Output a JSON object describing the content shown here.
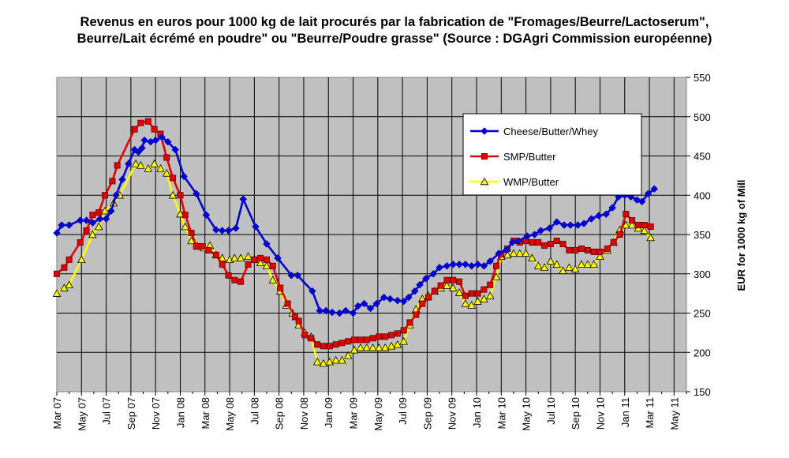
{
  "chart_data": {
    "type": "line",
    "title": "Revenus en euros pour 1000 kg de lait procurés par la fabrication de \"Fromages/Beurre/Lactoserum\",",
    "subtitle": "Beurre/Lait écrémé en poudre\" ou \"Beurre/Poudre grasse\" (Source : DGAgri Commission européenne)",
    "xlabel": "",
    "ylabel": "EUR for 1000 kg of Mill",
    "ylim": [
      150,
      550
    ],
    "yticks": [
      150,
      200,
      250,
      300,
      350,
      400,
      450,
      500,
      550
    ],
    "xlim": [
      0,
      51
    ],
    "x_tick_labels": [
      "Mar 07",
      "May 07",
      "Jul 07",
      "Sep 07",
      "Nov 07",
      "Jan 08",
      "Mar 08",
      "May 08",
      "Jul 08",
      "Sep 08",
      "Nov 08",
      "Jan 09",
      "Mar 09",
      "May 09",
      "Jul 09",
      "Sep 09",
      "Nov 09",
      "Jan 10",
      "Mar 10",
      "May 10",
      "Jul 10",
      "Sep 10",
      "Nov 10",
      "Jan 11",
      "Mar 11",
      "May 11"
    ],
    "grid": true,
    "legend_position": "top-right",
    "background": "#c0c0c0",
    "series": [
      {
        "name": "Cheese/Butter/Whey",
        "color": "#0000cc",
        "marker": "diamond",
        "points": [
          [
            0,
            352
          ],
          [
            0.4,
            362
          ],
          [
            1,
            362
          ],
          [
            1.9,
            368
          ],
          [
            2.4,
            368
          ],
          [
            2.9,
            365
          ],
          [
            3.5,
            370
          ],
          [
            4,
            370
          ],
          [
            4.4,
            380
          ],
          [
            4.8,
            400
          ],
          [
            5.3,
            420
          ],
          [
            5.8,
            440
          ],
          [
            6.3,
            458
          ],
          [
            6.6,
            455
          ],
          [
            6.9,
            460
          ],
          [
            7.1,
            470
          ],
          [
            7.6,
            468
          ],
          [
            8,
            470
          ],
          [
            8.5,
            474
          ],
          [
            9,
            468
          ],
          [
            9.6,
            458
          ],
          [
            10.3,
            424
          ],
          [
            11.3,
            402
          ],
          [
            12.1,
            375
          ],
          [
            12.9,
            356
          ],
          [
            13.4,
            355
          ],
          [
            13.9,
            355
          ],
          [
            14.5,
            358
          ],
          [
            15.1,
            395
          ],
          [
            16.1,
            360
          ],
          [
            17,
            338
          ],
          [
            17.9,
            320
          ],
          [
            19,
            298
          ],
          [
            19.5,
            298
          ],
          [
            20.7,
            278
          ],
          [
            21.3,
            253
          ],
          [
            21.8,
            253
          ],
          [
            22.3,
            251
          ],
          [
            22.9,
            250
          ],
          [
            23.4,
            253
          ],
          [
            24,
            250
          ],
          [
            24.4,
            259
          ],
          [
            24.9,
            262
          ],
          [
            25.4,
            256
          ],
          [
            25.9,
            262
          ],
          [
            26.5,
            270
          ],
          [
            27,
            268
          ],
          [
            27.6,
            266
          ],
          [
            28.1,
            265
          ],
          [
            28.5,
            270
          ],
          [
            29,
            278
          ],
          [
            29.4,
            286
          ],
          [
            29.9,
            294
          ],
          [
            30.5,
            300
          ],
          [
            31,
            308
          ],
          [
            31.6,
            310
          ],
          [
            32.1,
            312
          ],
          [
            32.6,
            312
          ],
          [
            33.1,
            312
          ],
          [
            33.6,
            310
          ],
          [
            34.1,
            312
          ],
          [
            34.6,
            310
          ],
          [
            35.1,
            316
          ],
          [
            35.8,
            326
          ],
          [
            36.4,
            330
          ],
          [
            36.9,
            340
          ],
          [
            37.4,
            342
          ],
          [
            38.1,
            348
          ],
          [
            38.7,
            350
          ],
          [
            39.2,
            355
          ],
          [
            39.9,
            358
          ],
          [
            40.5,
            366
          ],
          [
            41.1,
            362
          ],
          [
            41.6,
            362
          ],
          [
            42.2,
            362
          ],
          [
            42.7,
            364
          ],
          [
            43.3,
            370
          ],
          [
            43.9,
            374
          ],
          [
            44.5,
            376
          ],
          [
            45,
            384
          ],
          [
            45.5,
            398
          ],
          [
            46,
            400
          ],
          [
            46.5,
            398
          ],
          [
            47,
            394
          ],
          [
            47.4,
            392
          ],
          [
            47.9,
            402
          ],
          [
            48.4,
            408
          ]
        ]
      },
      {
        "name": "SMP/Butter",
        "color": "#e00000",
        "marker": "square",
        "points": [
          [
            0,
            300
          ],
          [
            0.6,
            308
          ],
          [
            1,
            318
          ],
          [
            1.9,
            340
          ],
          [
            2.4,
            355
          ],
          [
            2.9,
            375
          ],
          [
            3.4,
            378
          ],
          [
            3.9,
            400
          ],
          [
            4.5,
            418
          ],
          [
            4.9,
            438
          ],
          [
            6.3,
            484
          ],
          [
            6.8,
            492
          ],
          [
            7.4,
            494
          ],
          [
            7.9,
            484
          ],
          [
            8.4,
            478
          ],
          [
            8.9,
            448
          ],
          [
            9.4,
            422
          ],
          [
            10,
            400
          ],
          [
            10.4,
            375
          ],
          [
            10.9,
            352
          ],
          [
            11.3,
            335
          ],
          [
            11.8,
            335
          ],
          [
            12.3,
            330
          ],
          [
            12.9,
            324
          ],
          [
            13.4,
            312
          ],
          [
            13.9,
            298
          ],
          [
            14.4,
            292
          ],
          [
            14.9,
            290
          ],
          [
            15.5,
            312
          ],
          [
            16,
            318
          ],
          [
            16.5,
            320
          ],
          [
            17,
            318
          ],
          [
            17.5,
            310
          ],
          [
            18.1,
            282
          ],
          [
            18.7,
            262
          ],
          [
            19.3,
            245
          ],
          [
            19.6,
            240
          ],
          [
            20.1,
            222
          ],
          [
            20.6,
            218
          ],
          [
            21.1,
            210
          ],
          [
            21.6,
            208
          ],
          [
            22.1,
            208
          ],
          [
            22.6,
            210
          ],
          [
            23.1,
            212
          ],
          [
            23.6,
            214
          ],
          [
            24.1,
            216
          ],
          [
            24.6,
            216
          ],
          [
            25.1,
            216
          ],
          [
            25.6,
            218
          ],
          [
            26.1,
            220
          ],
          [
            26.6,
            220
          ],
          [
            27.1,
            222
          ],
          [
            27.6,
            224
          ],
          [
            28.1,
            228
          ],
          [
            28.6,
            238
          ],
          [
            29.1,
            248
          ],
          [
            29.6,
            262
          ],
          [
            30.1,
            270
          ],
          [
            30.6,
            278
          ],
          [
            31.1,
            285
          ],
          [
            31.6,
            292
          ],
          [
            32.1,
            292
          ],
          [
            32.6,
            290
          ],
          [
            33.1,
            272
          ],
          [
            33.6,
            275
          ],
          [
            34.1,
            275
          ],
          [
            34.6,
            280
          ],
          [
            35.1,
            286
          ],
          [
            35.6,
            310
          ],
          [
            36,
            325
          ],
          [
            36.5,
            332
          ],
          [
            37,
            342
          ],
          [
            37.5,
            340
          ],
          [
            38,
            342
          ],
          [
            38.5,
            340
          ],
          [
            39,
            340
          ],
          [
            39.5,
            336
          ],
          [
            40,
            338
          ],
          [
            40.5,
            342
          ],
          [
            41,
            338
          ],
          [
            41.5,
            330
          ],
          [
            42,
            330
          ],
          [
            42.5,
            332
          ],
          [
            43,
            330
          ],
          [
            43.5,
            328
          ],
          [
            44,
            328
          ],
          [
            44.6,
            332
          ],
          [
            45.1,
            340
          ],
          [
            45.6,
            350
          ],
          [
            46.1,
            376
          ],
          [
            46.6,
            368
          ],
          [
            47.1,
            362
          ],
          [
            47.6,
            362
          ],
          [
            48.1,
            360
          ]
        ]
      },
      {
        "name": "WMP/Butter",
        "color": "#ffff00",
        "marker": "triangle",
        "points": [
          [
            0,
            275
          ],
          [
            0.6,
            282
          ],
          [
            1,
            286
          ],
          [
            2,
            318
          ],
          [
            2.9,
            350
          ],
          [
            3.4,
            360
          ],
          [
            3.9,
            380
          ],
          [
            4.6,
            390
          ],
          [
            5.1,
            400
          ],
          [
            6.4,
            440
          ],
          [
            6.8,
            438
          ],
          [
            7.4,
            434
          ],
          [
            7.9,
            440
          ],
          [
            8.4,
            434
          ],
          [
            8.9,
            428
          ],
          [
            9.4,
            400
          ],
          [
            10,
            376
          ],
          [
            10.4,
            360
          ],
          [
            10.9,
            342
          ],
          [
            11.4,
            335
          ],
          [
            11.9,
            333
          ],
          [
            12.4,
            336
          ],
          [
            12.9,
            324
          ],
          [
            13.4,
            320
          ],
          [
            14,
            318
          ],
          [
            14.4,
            320
          ],
          [
            14.9,
            320
          ],
          [
            15.5,
            322
          ],
          [
            16,
            318
          ],
          [
            16.5,
            314
          ],
          [
            17,
            310
          ],
          [
            17.5,
            292
          ],
          [
            18.1,
            278
          ],
          [
            18.6,
            260
          ],
          [
            19.1,
            250
          ],
          [
            19.6,
            235
          ],
          [
            20.1,
            225
          ],
          [
            20.6,
            220
          ],
          [
            21.1,
            188
          ],
          [
            21.6,
            186
          ],
          [
            22.1,
            188
          ],
          [
            22.6,
            190
          ],
          [
            23.1,
            190
          ],
          [
            23.6,
            196
          ],
          [
            24.1,
            203
          ],
          [
            24.6,
            206
          ],
          [
            25.1,
            206
          ],
          [
            25.6,
            206
          ],
          [
            26.1,
            206
          ],
          [
            26.6,
            206
          ],
          [
            27.1,
            208
          ],
          [
            27.6,
            210
          ],
          [
            28.1,
            214
          ],
          [
            28.6,
            235
          ],
          [
            29.1,
            255
          ],
          [
            29.6,
            268
          ],
          [
            30.1,
            272
          ],
          [
            30.6,
            278
          ],
          [
            31.1,
            282
          ],
          [
            31.6,
            285
          ],
          [
            32.1,
            282
          ],
          [
            32.6,
            276
          ],
          [
            33.1,
            262
          ],
          [
            33.6,
            260
          ],
          [
            34.1,
            265
          ],
          [
            34.6,
            268
          ],
          [
            35.1,
            272
          ],
          [
            35.6,
            296
          ],
          [
            36,
            322
          ],
          [
            36.5,
            324
          ],
          [
            37,
            326
          ],
          [
            37.5,
            326
          ],
          [
            38,
            326
          ],
          [
            38.5,
            320
          ],
          [
            39,
            310
          ],
          [
            39.5,
            308
          ],
          [
            40,
            316
          ],
          [
            40.5,
            312
          ],
          [
            41,
            304
          ],
          [
            41.5,
            308
          ],
          [
            42,
            306
          ],
          [
            42.5,
            312
          ],
          [
            43,
            312
          ],
          [
            43.5,
            312
          ],
          [
            44,
            322
          ],
          [
            44.6,
            330
          ],
          [
            45.1,
            340
          ],
          [
            45.6,
            356
          ],
          [
            46.1,
            362
          ],
          [
            46.6,
            362
          ],
          [
            47.1,
            358
          ],
          [
            47.6,
            355
          ],
          [
            48.1,
            346
          ]
        ]
      }
    ]
  }
}
